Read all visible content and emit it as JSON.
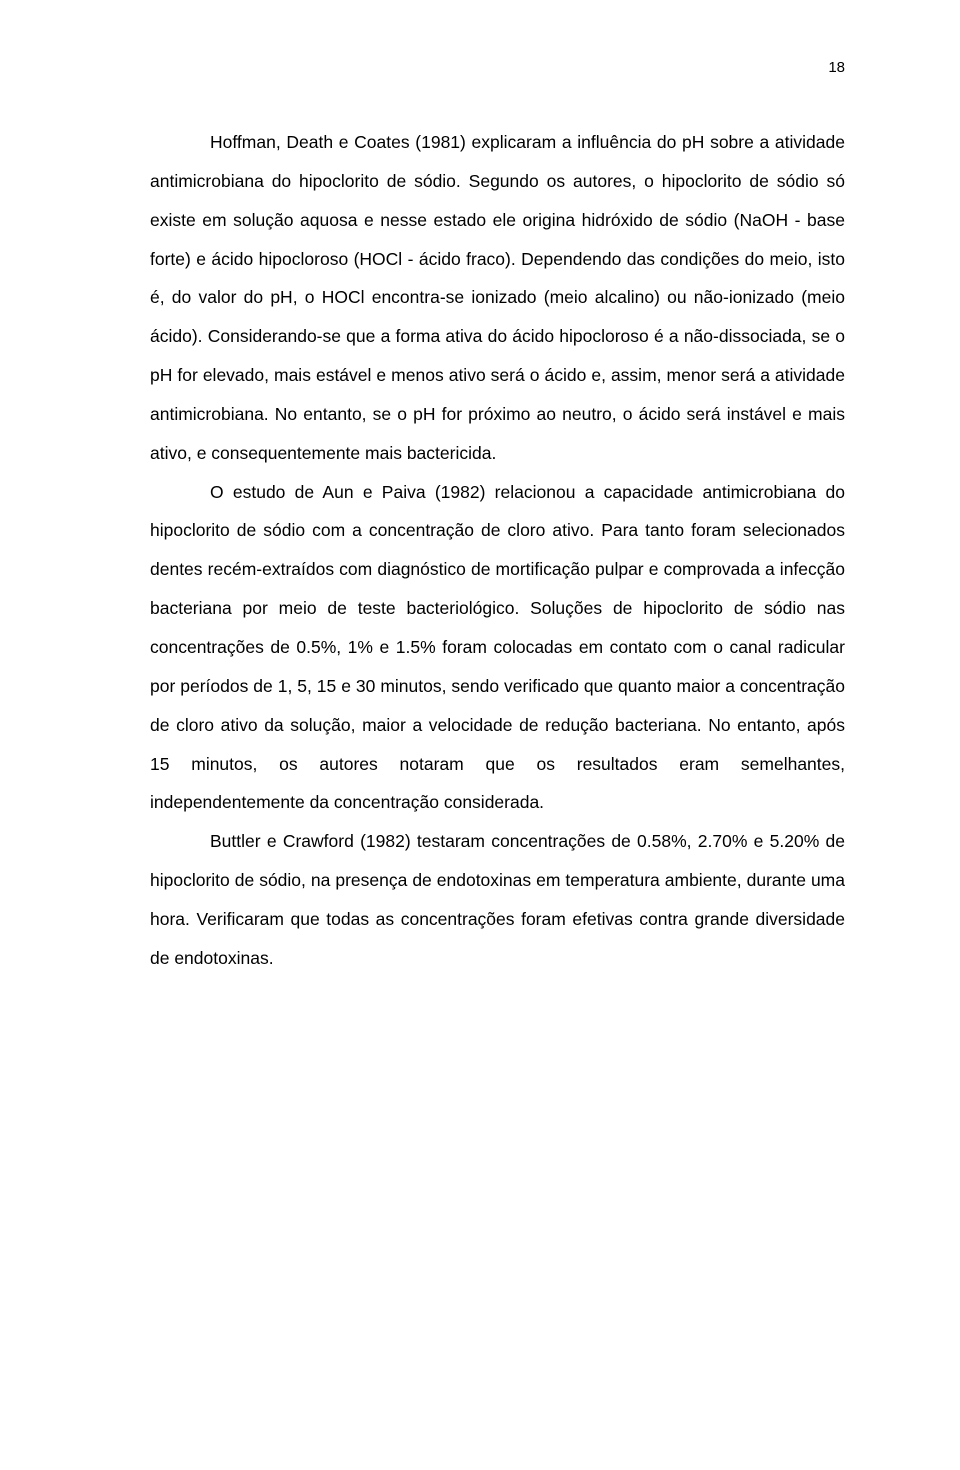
{
  "page_number": "18",
  "paragraphs": [
    "Hoffman, Death e Coates (1981) explicaram a influência do pH sobre a atividade antimicrobiana do hipoclorito de sódio. Segundo os autores, o hipoclorito de sódio só existe em solução aquosa e nesse estado ele origina hidróxido de sódio (NaOH - base forte) e ácido hipocloroso (HOCl - ácido fraco). Dependendo das condições do meio, isto é, do valor do pH, o HOCl encontra-se ionizado (meio alcalino) ou não-ionizado (meio ácido). Considerando-se que a forma ativa do ácido hipocloroso é a não-dissociada, se o pH for elevado, mais estável e menos ativo será o ácido e, assim, menor será a atividade antimicrobiana. No entanto, se o pH for próximo ao neutro, o ácido será instável e mais ativo, e consequentemente mais bactericida.",
    "O estudo de Aun e Paiva (1982) relacionou a capacidade antimicrobiana do hipoclorito de sódio com a concentração de cloro ativo. Para tanto foram selecionados dentes recém-extraídos com diagnóstico de mortificação pulpar e comprovada a infecção bacteriana por meio de teste bacteriológico. Soluções de hipoclorito de sódio nas concentrações de 0.5%, 1% e 1.5% foram colocadas em contato com o canal radicular por períodos de 1, 5, 15 e 30 minutos, sendo verificado que quanto maior a concentração de cloro ativo da solução, maior a velocidade de redução bacteriana. No entanto, após 15 minutos, os autores notaram que os resultados eram semelhantes, independentemente da concentração considerada.",
    "Buttler e Crawford (1982) testaram concentrações de 0.58%, 2.70% e 5.20% de hipoclorito de sódio, na presença de endotoxinas em temperatura ambiente, durante uma hora. Verificaram que todas as concentrações foram efetivas contra grande diversidade de endotoxinas."
  ]
}
